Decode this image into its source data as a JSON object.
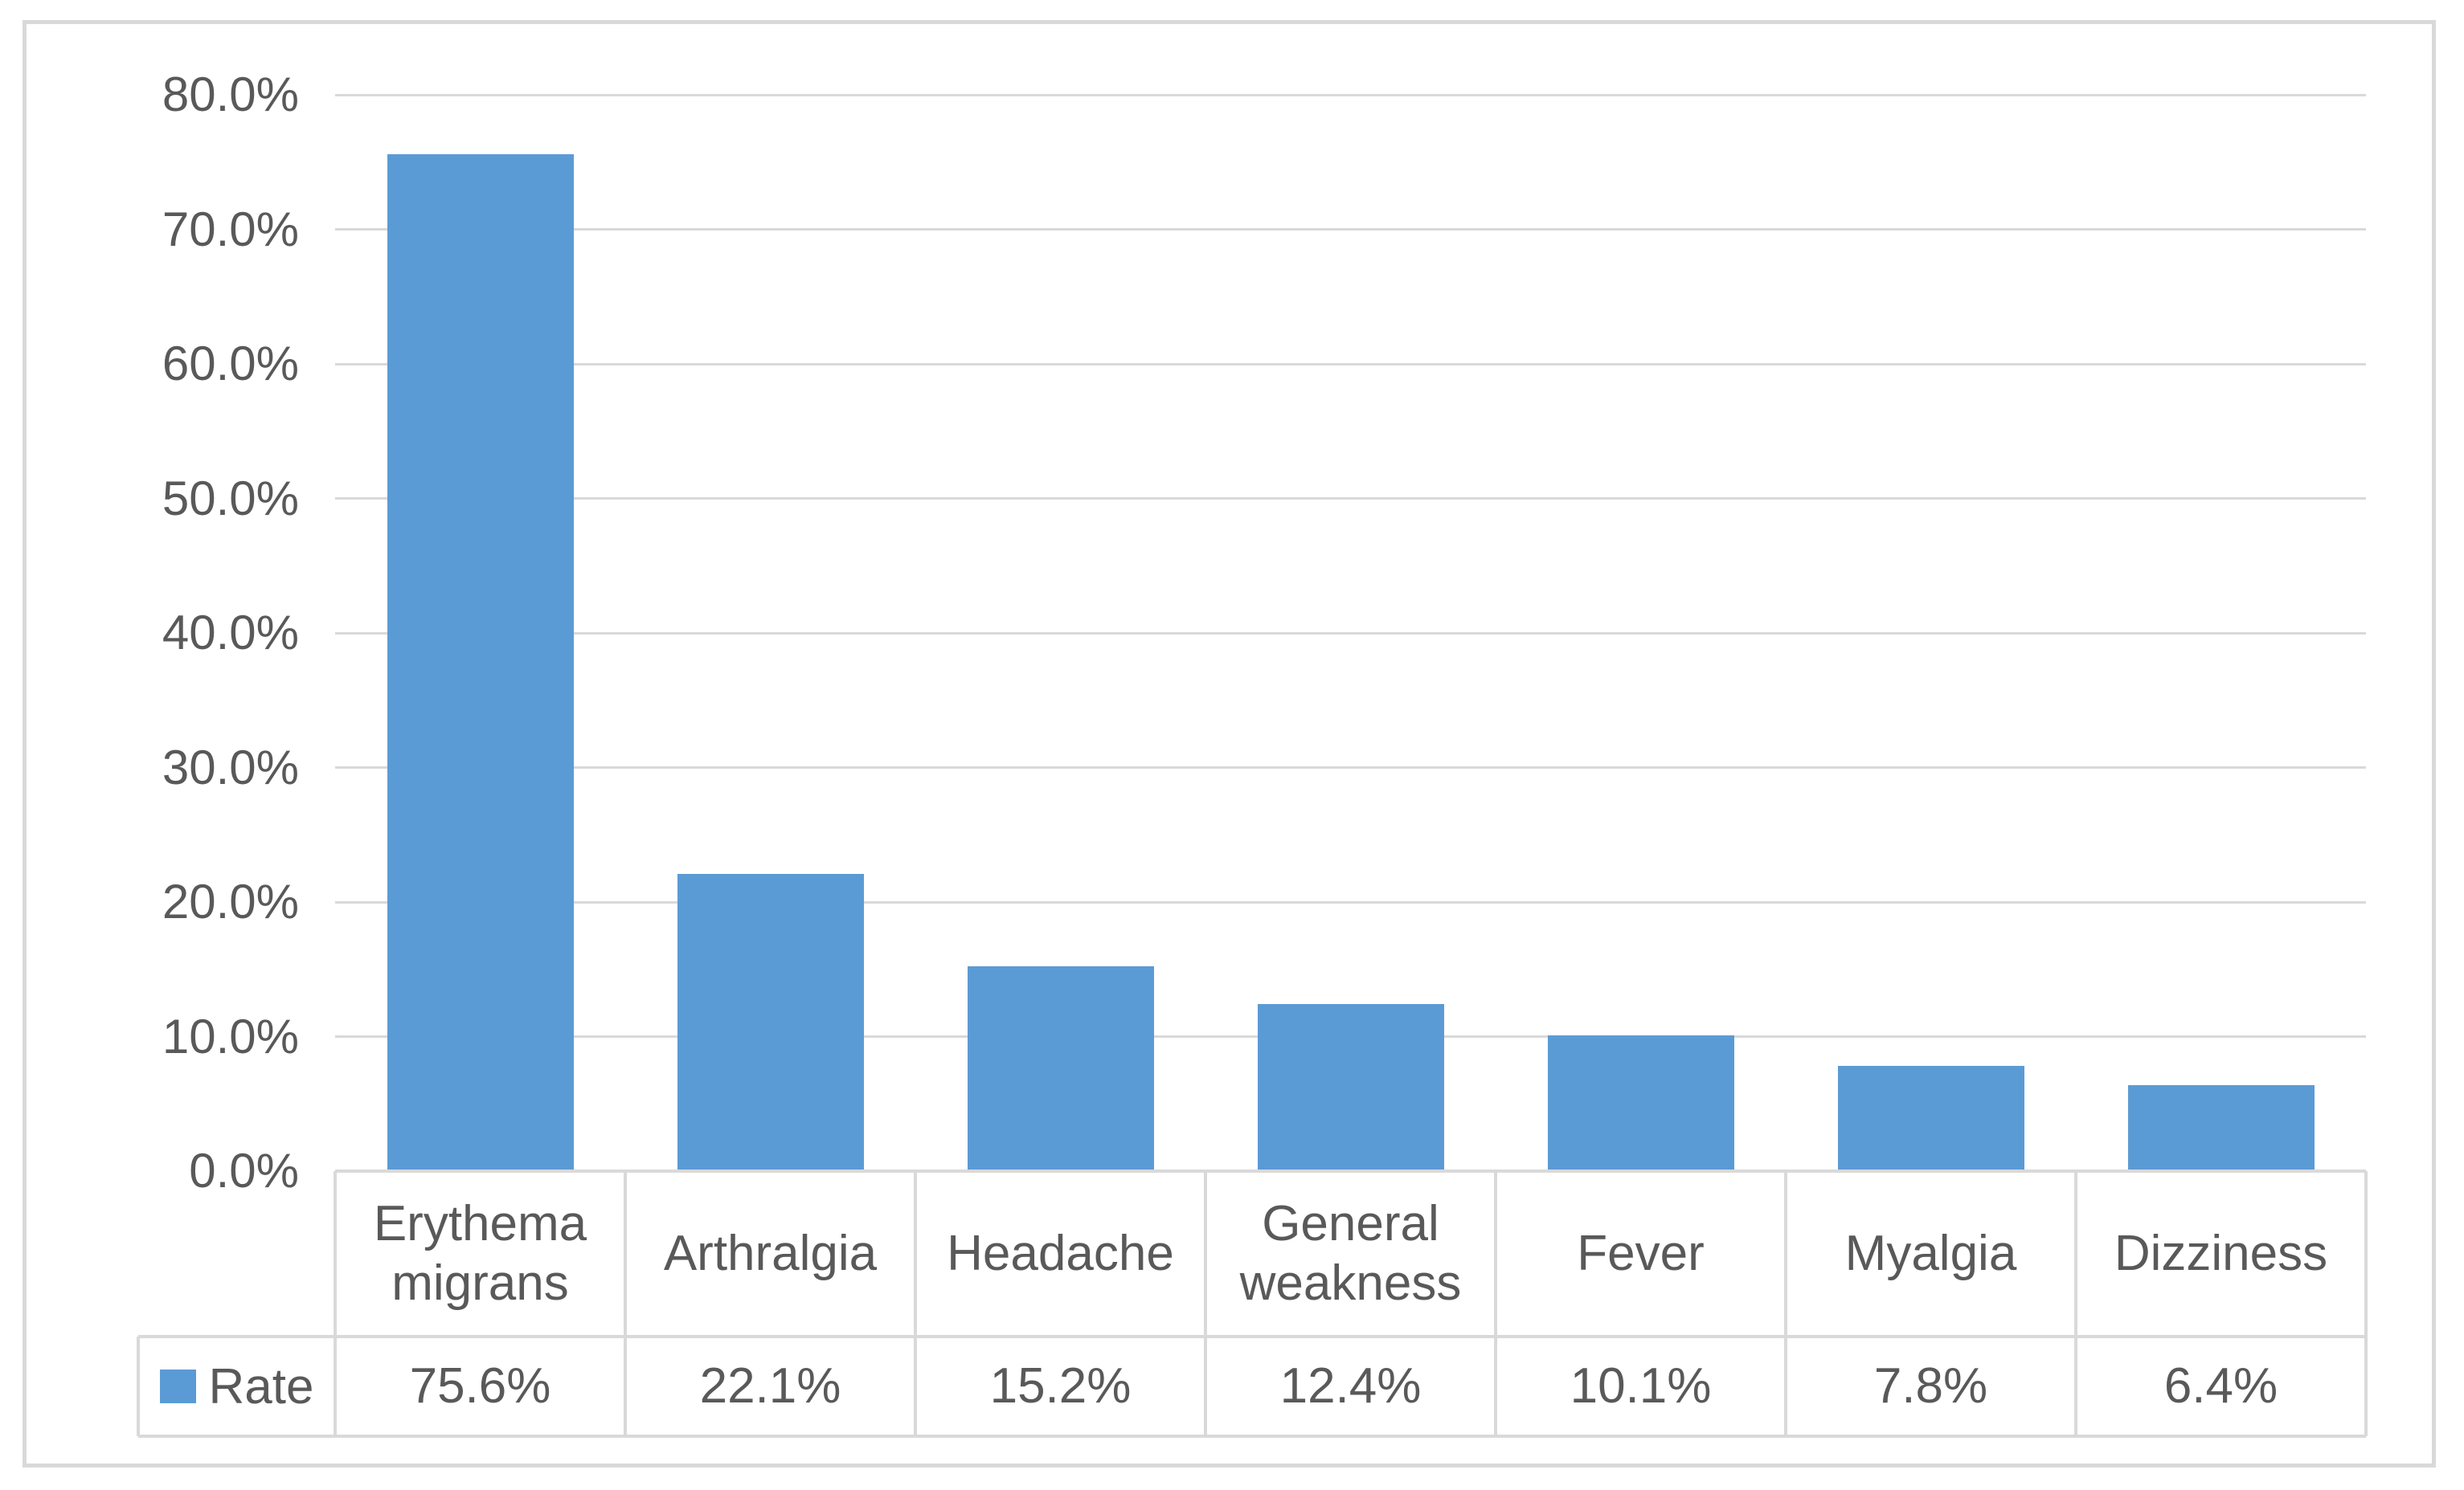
{
  "chart_data": {
    "type": "bar",
    "title": "",
    "categories": [
      "Erythema migrans",
      "Arthralgia",
      "Headache",
      "General weakness",
      "Fever",
      "Myalgia",
      "Dizziness"
    ],
    "series": [
      {
        "name": "Rate",
        "values": [
          75.6,
          22.1,
          15.2,
          12.4,
          10.1,
          7.8,
          6.4
        ]
      }
    ],
    "value_labels": [
      "75.6%",
      "22.1%",
      "15.2%",
      "12.4%",
      "10.1%",
      "7.8%",
      "6.4%"
    ],
    "ylim": [
      0,
      80
    ],
    "ytick_labels": [
      "0.0%",
      "10.0%",
      "20.0%",
      "30.0%",
      "40.0%",
      "50.0%",
      "60.0%",
      "70.0%",
      "80.0%"
    ],
    "grid": true,
    "legend_position": "bottom-left-data-table",
    "bar_color": "#5B9BD5"
  },
  "legend": {
    "label": "Rate",
    "swatch_color": "#5B9BD5"
  },
  "colors": {
    "background": "#FFFFFF",
    "bar": "#5B9BD5",
    "gridline": "#D9D9D9",
    "table_border": "#D9D9D9",
    "frame_border": "#D9D9D9",
    "text": "#595959"
  }
}
